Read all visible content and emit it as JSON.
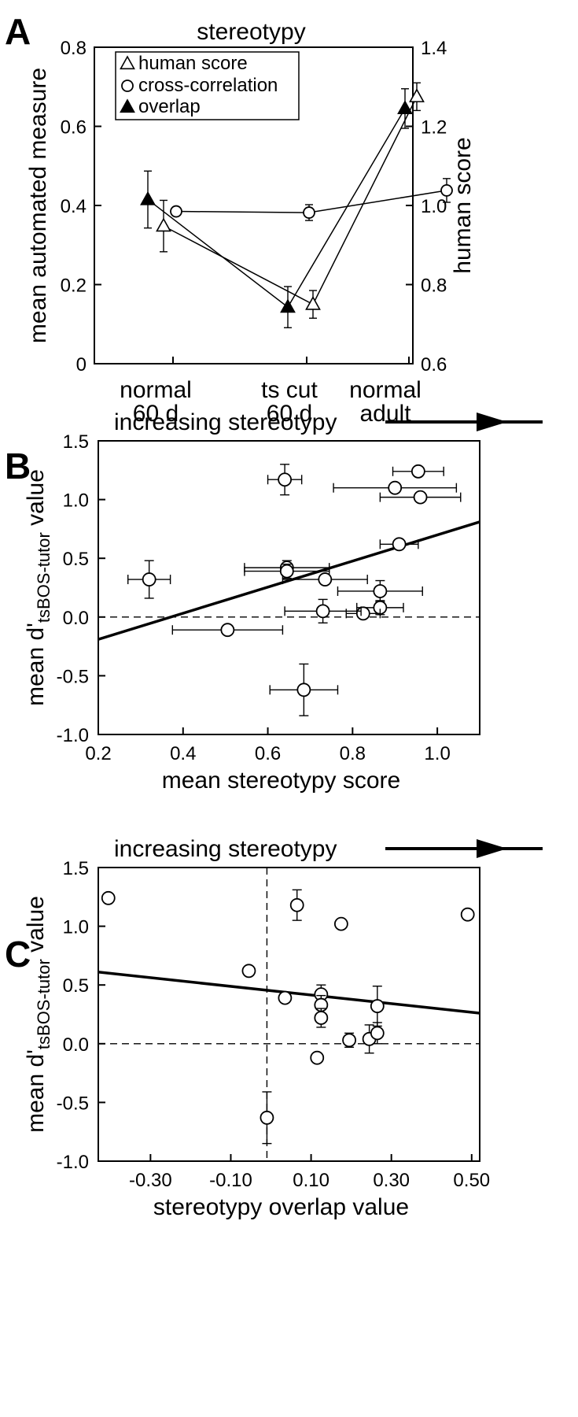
{
  "chart_data": [
    {
      "panel": "A",
      "type": "line",
      "title": "stereotypy",
      "ylabel": "mean automated measure",
      "ylabel_right": "human score",
      "categories": [
        "normal\n60 d",
        "ts cut\n60 d",
        "normal\nadult"
      ],
      "category_lines": [
        [
          "normal",
          "60 d"
        ],
        [
          "ts cut",
          "60 d"
        ],
        [
          "normal",
          "adult"
        ]
      ],
      "ylim": [
        0,
        0.8
      ],
      "ylim_right": [
        0.6,
        1.4
      ],
      "yticks": [
        "0",
        "0.2",
        "0.4",
        "0.6",
        "0.8"
      ],
      "yticks_right": [
        "0.6",
        "0.8",
        "1.0",
        "1.2",
        "1.4"
      ],
      "legend": [
        "human score",
        "cross-correlation",
        "overlap"
      ],
      "legend_position": "top-left",
      "series": [
        {
          "name": "human score",
          "marker": "open-triangle",
          "axis": "right",
          "values": [
            0.948,
            0.75,
            1.275
          ],
          "err": [
            0.065,
            0.035,
            0.035
          ]
        },
        {
          "name": "cross-correlation",
          "marker": "open-circle",
          "axis": "left",
          "values": [
            0.385,
            0.382,
            0.438
          ],
          "err": [
            0,
            0.02,
            0.03
          ]
        },
        {
          "name": "overlap",
          "marker": "filled-triangle",
          "axis": "left",
          "values": [
            0.415,
            0.143,
            0.645
          ],
          "err": [
            0.072,
            0.052,
            0.05
          ]
        }
      ]
    },
    {
      "panel": "B",
      "type": "scatter",
      "annotation": "increasing stereotypy",
      "xlabel": "mean stereotypy score",
      "ylabel_main": "mean d'",
      "ylabel_sub": "tsBOS-tutor",
      "ylabel_end": " value",
      "xlim": [
        0.2,
        1.1
      ],
      "ylim": [
        -1.0,
        1.5
      ],
      "xticks": [
        "0.2",
        "0.4",
        "0.6",
        "0.8",
        "1.0"
      ],
      "yticks": [
        "-1.0",
        "-0.5",
        "0.0",
        "0.5",
        "1.0",
        "1.5"
      ],
      "regression": {
        "x": [
          0.2,
          1.1
        ],
        "y": [
          -0.19,
          0.81
        ]
      },
      "reference_lines": {
        "y": 0.0
      },
      "points": [
        {
          "x": 0.32,
          "y": 0.32,
          "xerr": 0.05,
          "yerr": 0.16
        },
        {
          "x": 0.64,
          "y": 1.17,
          "xerr": 0.04,
          "yerr": 0.13
        },
        {
          "x": 0.955,
          "y": 1.24,
          "xerr": 0.06,
          "yerr": 0
        },
        {
          "x": 0.9,
          "y": 1.1,
          "xerr": 0.145,
          "yerr": 0
        },
        {
          "x": 0.96,
          "y": 1.02,
          "xerr": 0.095,
          "yerr": 0
        },
        {
          "x": 0.91,
          "y": 0.62,
          "xerr": 0.045,
          "yerr": 0
        },
        {
          "x": 0.645,
          "y": 0.42,
          "xerr": 0.1,
          "yerr": 0.06
        },
        {
          "x": 0.645,
          "y": 0.39,
          "xerr": 0.1,
          "yerr": 0.06
        },
        {
          "x": 0.735,
          "y": 0.32,
          "xerr": 0.1,
          "yerr": 0
        },
        {
          "x": 0.865,
          "y": 0.22,
          "xerr": 0.1,
          "yerr": 0.09
        },
        {
          "x": 0.865,
          "y": 0.08,
          "xerr": 0.055,
          "yerr": 0.06
        },
        {
          "x": 0.825,
          "y": 0.03,
          "xerr": 0.04,
          "yerr": 0
        },
        {
          "x": 0.73,
          "y": 0.05,
          "xerr": 0.09,
          "yerr": 0.1
        },
        {
          "x": 0.505,
          "y": -0.11,
          "xerr": 0.13,
          "yerr": 0
        },
        {
          "x": 0.685,
          "y": -0.62,
          "xerr": 0.08,
          "yerr": 0.22
        }
      ]
    },
    {
      "panel": "C",
      "type": "scatter",
      "annotation": "increasing stereotypy",
      "xlabel": "stereotypy overlap value",
      "ylabel_main": "mean d'",
      "ylabel_sub": "tsBOS-tutor",
      "ylabel_end": " value",
      "xlim": [
        -0.43,
        0.52
      ],
      "ylim": [
        -1.0,
        1.5
      ],
      "xticks": [
        "-0.30",
        "-0.10",
        "0.10",
        "0.30",
        "0.50"
      ],
      "xtick_values": [
        -0.3,
        -0.1,
        0.1,
        0.3,
        0.5
      ],
      "yticks": [
        "-1.0",
        "-0.5",
        "0.0",
        "0.5",
        "1.0",
        "1.5"
      ],
      "regression": {
        "x": [
          -0.43,
          0.52
        ],
        "y": [
          0.61,
          0.26
        ]
      },
      "reference_lines": {
        "y": 0.0,
        "x": -0.01
      },
      "points": [
        {
          "x": -0.405,
          "y": 1.24,
          "yerr": 0
        },
        {
          "x": 0.065,
          "y": 1.18,
          "yerr": 0.13
        },
        {
          "x": 0.175,
          "y": 1.02,
          "yerr": 0
        },
        {
          "x": 0.49,
          "y": 1.1,
          "yerr": 0
        },
        {
          "x": -0.055,
          "y": 0.62,
          "yerr": 0
        },
        {
          "x": 0.035,
          "y": 0.39,
          "yerr": 0
        },
        {
          "x": 0.125,
          "y": 0.42,
          "yerr": 0.08
        },
        {
          "x": 0.125,
          "y": 0.33,
          "yerr": 0.08
        },
        {
          "x": 0.125,
          "y": 0.22,
          "yerr": 0.08
        },
        {
          "x": 0.265,
          "y": 0.32,
          "yerr": 0.17
        },
        {
          "x": 0.195,
          "y": 0.03,
          "yerr": 0.06
        },
        {
          "x": 0.245,
          "y": 0.04,
          "yerr": 0.12
        },
        {
          "x": 0.265,
          "y": 0.09,
          "yerr": 0.09
        },
        {
          "x": 0.115,
          "y": -0.12,
          "yerr": 0
        },
        {
          "x": -0.01,
          "y": -0.63,
          "yerr": 0.22
        }
      ]
    }
  ],
  "panels": {
    "a": "A",
    "b": "B",
    "c": "C"
  }
}
